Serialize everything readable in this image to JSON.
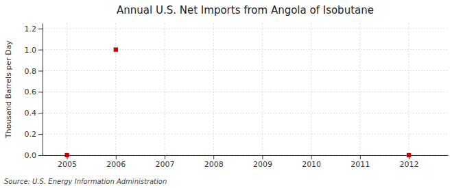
{
  "chart_data": {
    "type": "scatter",
    "title": "Annual U.S. Net Imports from Angola of Isobutane",
    "ylabel": "Thousand Barrels per Day",
    "source": "Source: U.S. Energy Information Administration",
    "x": [
      2005,
      2006,
      2012
    ],
    "values": [
      0.0,
      1.0,
      0.0
    ],
    "color": "#cc0000",
    "marker": "square",
    "xlim": [
      2004.5,
      2012.8
    ],
    "xticks": [
      2005,
      2006,
      2007,
      2008,
      2009,
      2010,
      2011,
      2012
    ],
    "ylim": [
      0.0,
      1.25
    ],
    "yticks": [
      {
        "value": 0.0,
        "label": "0.0"
      },
      0.2,
      0.4,
      0.6,
      0.8,
      {
        "value": 1.0,
        "label": "1.0"
      },
      1.2
    ],
    "grid": true
  }
}
